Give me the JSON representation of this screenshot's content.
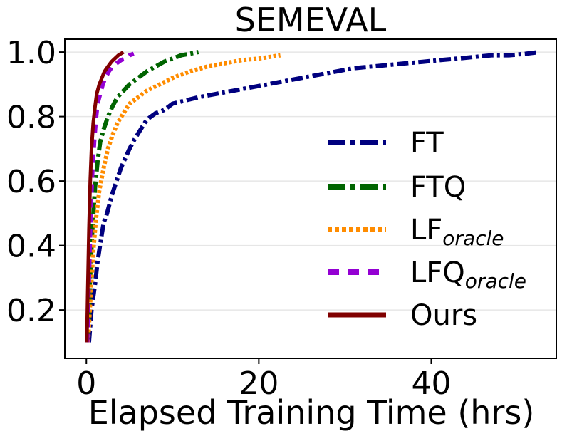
{
  "chart_data": {
    "type": "line",
    "title": "SEMEVAL",
    "xlabel": "Elapsed Training Time (hrs)",
    "ylabel": "",
    "xlim": [
      -2.5,
      54.5
    ],
    "ylim": [
      0.05,
      1.04
    ],
    "xticks": [
      0,
      20,
      40
    ],
    "yticks": [
      0.2,
      0.4,
      0.6,
      0.8,
      1.0
    ],
    "xtick_labels": [
      "0",
      "20",
      "40"
    ],
    "ytick_labels": [
      "0.2",
      "0.4",
      "0.6",
      "0.8",
      "1.0"
    ],
    "grid": "horizontal",
    "legend_position": "center-right",
    "series": [
      {
        "name": "FT",
        "name_main": "FT",
        "name_sub": "",
        "color": "#00007f",
        "dash": "dashdot",
        "x": [
          0.3,
          0.6,
          1.0,
          1.3,
          1.7,
          2.0,
          2.4,
          2.7,
          3.0,
          3.5,
          4.0,
          4.5,
          5.0,
          5.6,
          6.3,
          7.0,
          8.0,
          9.0,
          10.0,
          11.5,
          13.0,
          15.0,
          17.0,
          19.0,
          21.0,
          23.0,
          25.0,
          27.0,
          29.0,
          31.0,
          33.0,
          35.0,
          37.0,
          39.0,
          41.0,
          43.0,
          45.0,
          47.0,
          49.0,
          51.0,
          52.5
        ],
        "y": [
          0.1,
          0.2,
          0.28,
          0.35,
          0.42,
          0.47,
          0.5,
          0.53,
          0.56,
          0.6,
          0.64,
          0.67,
          0.7,
          0.73,
          0.76,
          0.79,
          0.81,
          0.82,
          0.84,
          0.85,
          0.86,
          0.87,
          0.88,
          0.89,
          0.9,
          0.91,
          0.92,
          0.93,
          0.94,
          0.95,
          0.955,
          0.96,
          0.965,
          0.97,
          0.975,
          0.98,
          0.985,
          0.99,
          0.99,
          0.995,
          1.0
        ]
      },
      {
        "name": "FTQ",
        "name_main": "FTQ",
        "name_sub": "",
        "color": "#006400",
        "dash": "dashdot",
        "x": [
          0.2,
          0.4,
          0.7,
          1.0,
          1.3,
          1.6,
          2.0,
          2.5,
          3.0,
          3.6,
          4.3,
          5.0,
          6.0,
          7.0,
          8.0,
          9.0,
          10.0,
          11.0,
          12.0,
          13.0
        ],
        "y": [
          0.1,
          0.28,
          0.45,
          0.58,
          0.66,
          0.72,
          0.76,
          0.8,
          0.83,
          0.86,
          0.88,
          0.9,
          0.92,
          0.94,
          0.955,
          0.97,
          0.98,
          0.99,
          0.995,
          1.0
        ]
      },
      {
        "name": "LForacle",
        "name_main": "LF",
        "name_sub": "oracle",
        "color": "#ff8c00",
        "dash": "dotted",
        "x": [
          0.2,
          0.5,
          0.8,
          1.1,
          1.5,
          2.0,
          2.5,
          3.0,
          3.6,
          4.3,
          5.0,
          6.0,
          7.0,
          8.5,
          10.0,
          12.0,
          14.0,
          16.0,
          18.0,
          20.0,
          22.5
        ],
        "y": [
          0.1,
          0.25,
          0.38,
          0.48,
          0.57,
          0.64,
          0.7,
          0.74,
          0.78,
          0.81,
          0.84,
          0.86,
          0.88,
          0.9,
          0.92,
          0.94,
          0.955,
          0.965,
          0.975,
          0.98,
          0.99
        ]
      },
      {
        "name": "LFQoracle",
        "name_main": "LFQ",
        "name_sub": "oracle",
        "color": "#9400d3",
        "dash": "dashed",
        "x": [
          0.1,
          0.3,
          0.5,
          0.7,
          0.9,
          1.1,
          1.3,
          1.6,
          1.9,
          2.2,
          2.6,
          3.0,
          3.5,
          4.0,
          4.5,
          5.0,
          5.5
        ],
        "y": [
          0.1,
          0.3,
          0.5,
          0.63,
          0.72,
          0.79,
          0.84,
          0.87,
          0.9,
          0.92,
          0.94,
          0.955,
          0.965,
          0.975,
          0.98,
          0.99,
          0.995
        ]
      },
      {
        "name": "Ours",
        "name_main": "Ours",
        "name_sub": "",
        "color": "#800000",
        "dash": "solid",
        "x": [
          0.05,
          0.15,
          0.3,
          0.45,
          0.6,
          0.8,
          1.0,
          1.2,
          1.5,
          1.8,
          2.1,
          2.5,
          2.9,
          3.3,
          3.7,
          4.0,
          4.3
        ],
        "y": [
          0.1,
          0.25,
          0.45,
          0.6,
          0.7,
          0.78,
          0.83,
          0.87,
          0.9,
          0.92,
          0.94,
          0.955,
          0.97,
          0.98,
          0.99,
          0.995,
          1.0
        ]
      }
    ]
  }
}
